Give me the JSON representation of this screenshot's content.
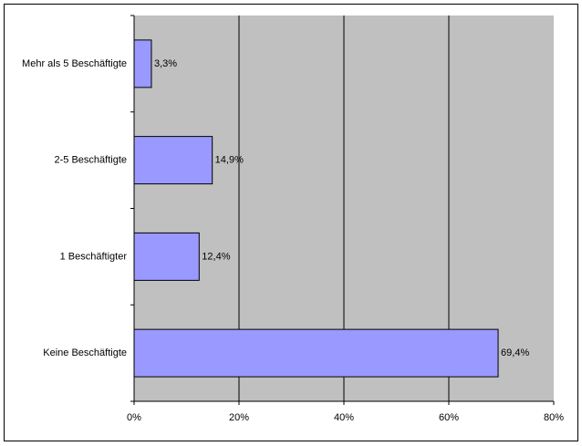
{
  "chart_data": {
    "type": "bar",
    "orientation": "horizontal",
    "categories": [
      "Mehr als 5 Beschäftigte",
      "2-5 Beschäftigte",
      "1 Beschäftigter",
      "Keine Beschäftigte"
    ],
    "values": [
      3.3,
      14.9,
      12.4,
      69.4
    ],
    "value_labels": [
      "3,3%",
      "14,9%",
      "12,4%",
      "69,4%"
    ],
    "color": "#9999ff",
    "xlim": [
      0,
      80
    ],
    "xticks": [
      {
        "value": 0,
        "label": "0%"
      },
      {
        "value": 20,
        "label": "20%"
      },
      {
        "value": 40,
        "label": "40%"
      },
      {
        "value": 60,
        "label": "60%"
      },
      {
        "value": 80,
        "label": "80%"
      }
    ],
    "grid": true
  }
}
